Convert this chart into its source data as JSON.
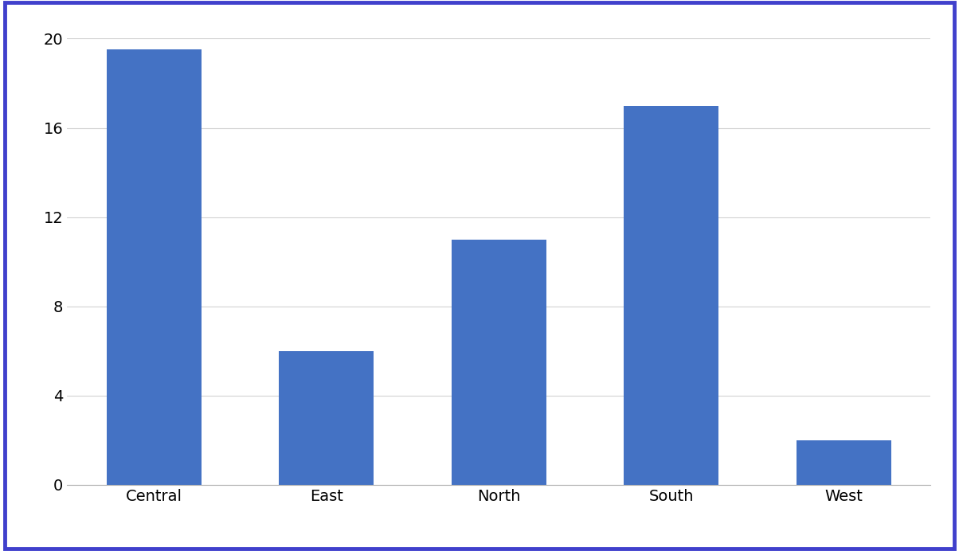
{
  "categories": [
    "Central",
    "East",
    "North",
    "South",
    "West"
  ],
  "values": [
    19.5,
    6,
    11,
    17,
    2
  ],
  "bar_color": "#4472C4",
  "ylim": [
    0,
    20
  ],
  "yticks": [
    0,
    4,
    8,
    12,
    16,
    20
  ],
  "background_color": "#ffffff",
  "plot_bg_color": "#ffffff",
  "grid_color": "#d3d3d3",
  "border_color": "#4040cc",
  "tick_label_fontsize": 14,
  "bar_width": 0.55
}
